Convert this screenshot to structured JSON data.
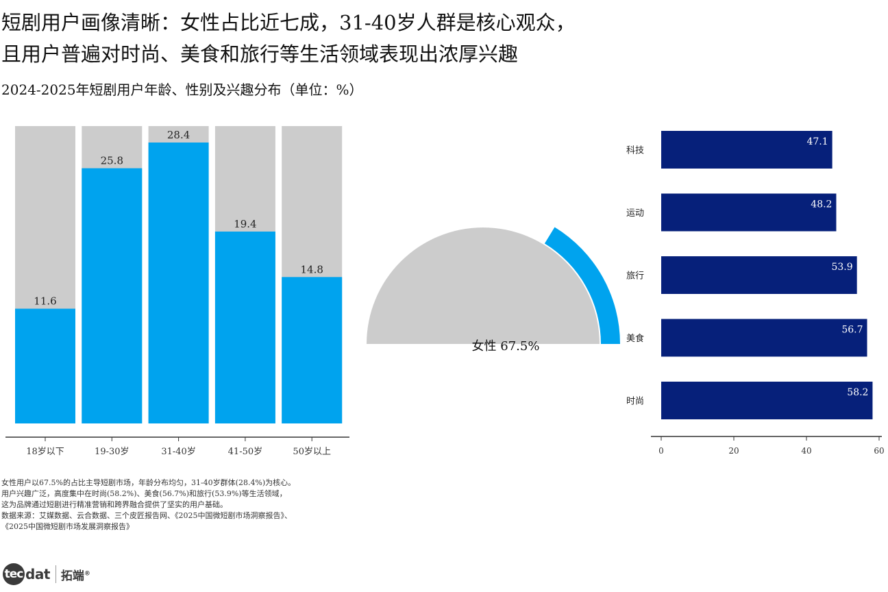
{
  "page": {
    "title_line1": "短剧用户画像清晰：女性占比近七成，31-40岁人群是核心观众，",
    "title_line2": "且用户普遍对时尚、美食和旅行等生活领域表现出浓厚兴趣",
    "subtitle": "2024-2025年短剧用户年龄、性别及兴趣分布（单位：%）"
  },
  "chart_data": [
    {
      "type": "bar",
      "categories": [
        "18岁以下",
        "19-30岁",
        "31-40岁",
        "41-50岁",
        "50岁以上"
      ],
      "values": [
        11.6,
        25.8,
        28.4,
        19.4,
        14.8
      ],
      "ylim": [
        0,
        28.4
      ],
      "background_bars": true,
      "colors": {
        "value": "#00a3ee",
        "background": "#cccccc"
      }
    },
    {
      "type": "pie",
      "style": "semicircle-gauge",
      "label": "女性 67.5%",
      "value": 67.5,
      "colors": {
        "arc": "#00a3ee",
        "base": "#cccccc"
      }
    },
    {
      "type": "bar",
      "orientation": "horizontal",
      "categories": [
        "科技",
        "运动",
        "旅行",
        "美食",
        "时尚"
      ],
      "values": [
        47.1,
        48.2,
        53.9,
        56.7,
        58.2
      ],
      "xlim": [
        0,
        60
      ],
      "xticks": [
        "0",
        "20",
        "40",
        "60"
      ],
      "colors": {
        "bar": "#06207a"
      }
    }
  ],
  "notes": [
    "女性用户以67.5%的占比主导短剧市场，年龄分布均匀，31-40岁群体(28.4%)为核心。",
    "用户兴趣广泛，高度集中在时尚(58.2%)、美食(56.7%)和旅行(53.9%)等生活领域，",
    "这为品牌通过短剧进行精准营销和跨界融合提供了坚实的用户基础。",
    "数据来源：艾媒数据、云合数据、三个皮匠报告网、《2025中国微短剧市场洞察报告》、",
    "《2025中国微短剧市场发展洞察报告》"
  ],
  "logo": {
    "mark": "tec",
    "word": "dat",
    "cn": "拓端",
    "reg": "®"
  }
}
